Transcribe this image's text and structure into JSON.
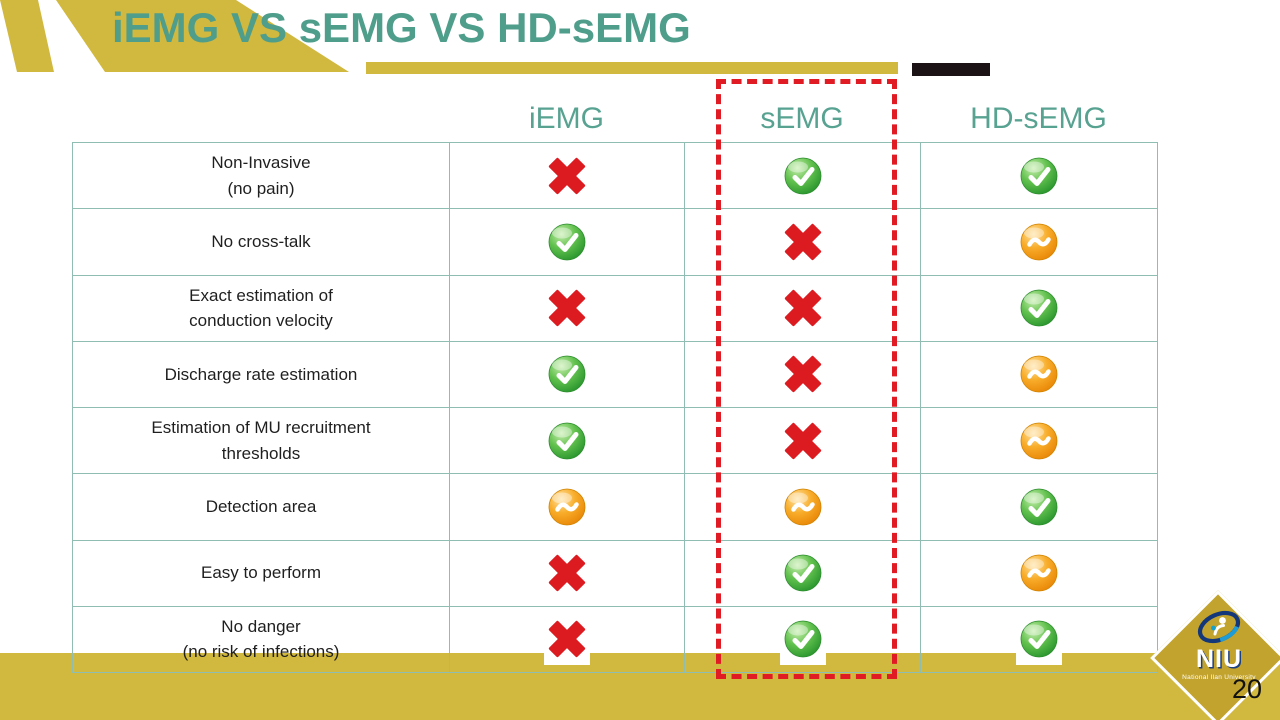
{
  "slide": {
    "title": "iEMG VS sEMG VS HD-sEMG",
    "page_number": "20"
  },
  "table": {
    "columns": [
      "iEMG",
      "sEMG",
      "HD-sEMG"
    ],
    "highlighted_column": "sEMG",
    "icon_legend": {
      "cross": "red-cross-icon",
      "check": "green-check-icon",
      "tilde": "orange-tilde-icon"
    },
    "rows": [
      {
        "label": "Non-Invasive\n(no pain)",
        "values": [
          "cross",
          "check",
          "check"
        ]
      },
      {
        "label": "No cross-talk",
        "values": [
          "check",
          "cross",
          "tilde"
        ]
      },
      {
        "label": "Exact estimation of\nconduction velocity",
        "values": [
          "cross",
          "cross",
          "check"
        ]
      },
      {
        "label": "Discharge rate estimation",
        "values": [
          "check",
          "cross",
          "tilde"
        ]
      },
      {
        "label": "Estimation of MU recruitment\nthresholds",
        "values": [
          "check",
          "cross",
          "tilde"
        ]
      },
      {
        "label": "Detection area",
        "values": [
          "tilde",
          "tilde",
          "check"
        ]
      },
      {
        "label": "Easy to perform",
        "values": [
          "cross",
          "check",
          "tilde"
        ]
      },
      {
        "label": "No danger\n(no risk of infections)",
        "values": [
          "cross",
          "check",
          "check"
        ]
      }
    ]
  },
  "logo": {
    "acronym": "NIU",
    "subtitle": "National Ilan University"
  },
  "colors": {
    "gold": "#d1b83e",
    "diamond_gold": "#c2a32d",
    "teal_title": "#4f9d8b",
    "teal_header": "#57a291",
    "table_border": "#90bdb1",
    "red": "#e11b23",
    "green": "#2f9e33",
    "orange": "#f49b00",
    "black_bar": "#1b1215"
  }
}
